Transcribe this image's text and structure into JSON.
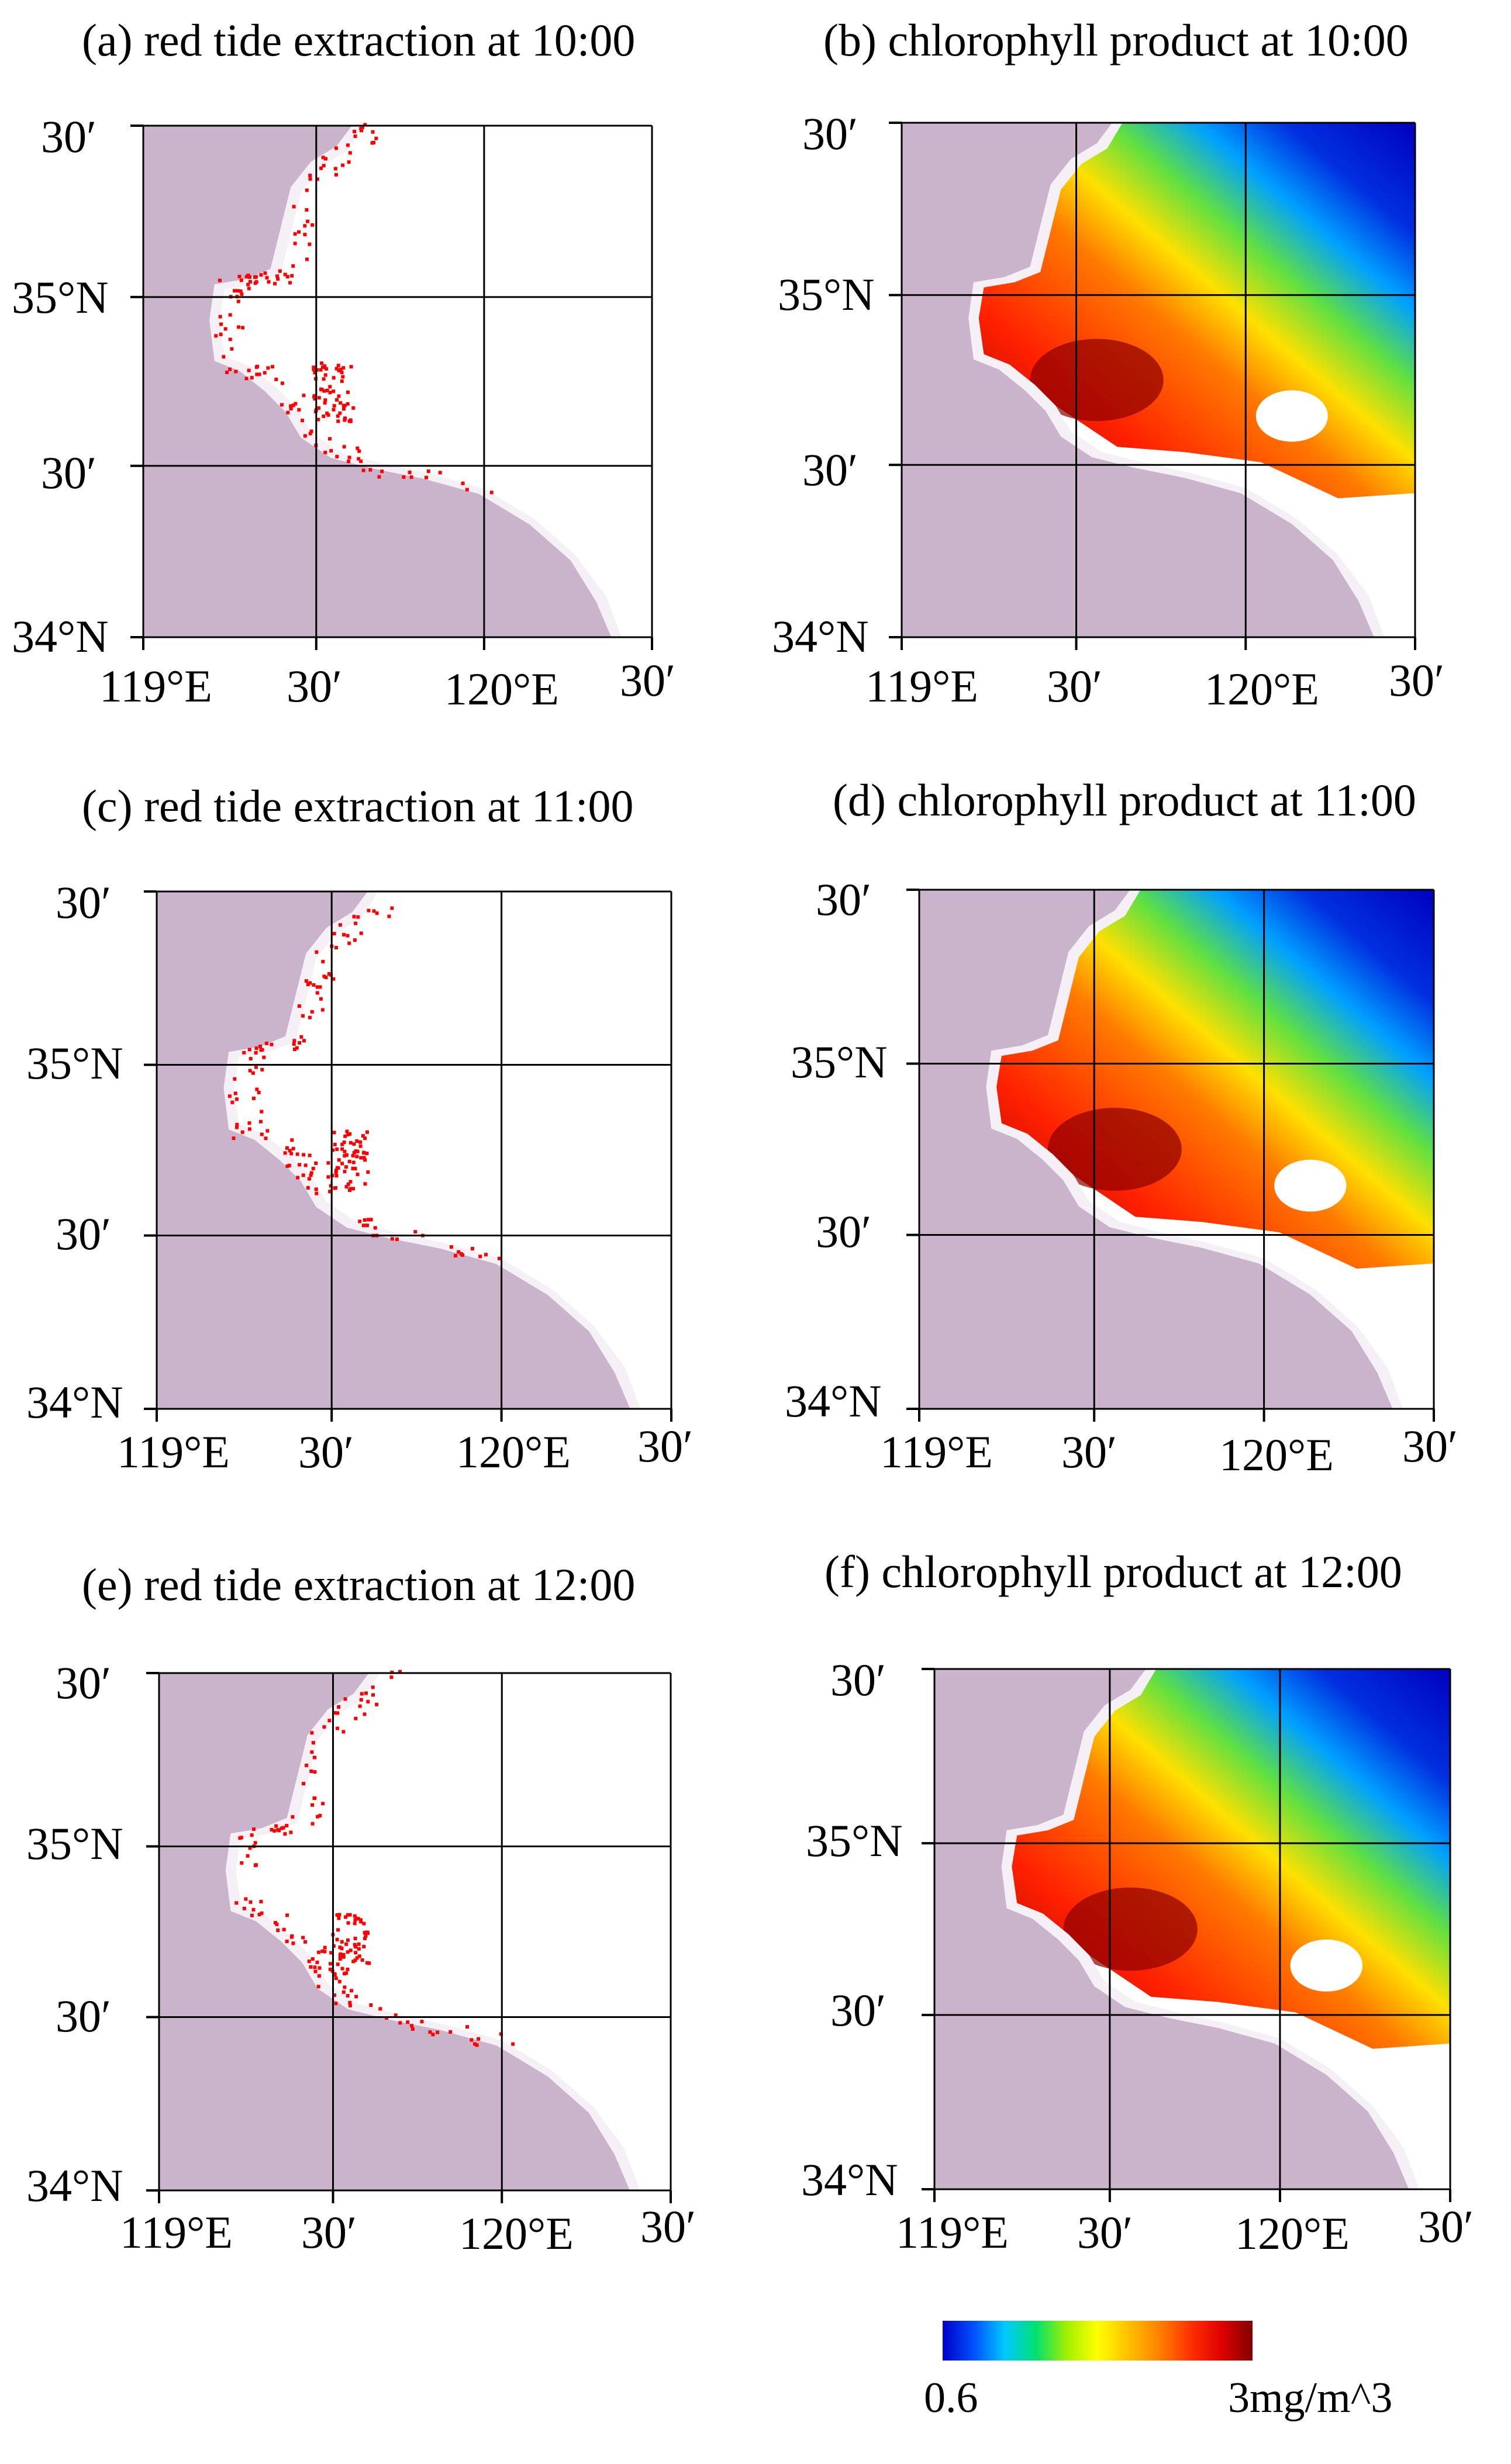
{
  "panels": [
    {
      "id": "a",
      "title": "(a) red tide extraction at 10:00",
      "kind": "red_tide",
      "time": "10:00"
    },
    {
      "id": "b",
      "title": "(b) chlorophyll product at 10:00",
      "kind": "chlorophyll",
      "time": "10:00"
    },
    {
      "id": "c",
      "title": "(c) red tide extraction at 11:00",
      "kind": "red_tide",
      "time": "11:00"
    },
    {
      "id": "d",
      "title": "(d) chlorophyll product at 11:00",
      "kind": "chlorophyll",
      "time": "11:00"
    },
    {
      "id": "e",
      "title": "(e) red tide extraction at 12:00",
      "kind": "red_tide",
      "time": "12:00"
    },
    {
      "id": "f",
      "title": "(f) chlorophyll product at 12:00",
      "kind": "chlorophyll",
      "time": "12:00"
    }
  ],
  "axes": {
    "lat_labels": [
      "30′",
      "35°N",
      "30′",
      "34°N"
    ],
    "lon_labels": [
      "119°E",
      "30′",
      "120°E",
      "30′"
    ]
  },
  "colorbar": {
    "min_label": "0.6",
    "max_label": "3mg/m^3",
    "min_value": 0.6,
    "max_value": 3,
    "unit": "mg/m^3",
    "colors": [
      "#0000c8",
      "#0050ff",
      "#00c8ff",
      "#00e070",
      "#a0f000",
      "#ffff00",
      "#ffc000",
      "#ff8000",
      "#ff3000",
      "#e00000",
      "#800000"
    ]
  },
  "colors": {
    "land": "#c9b4cc",
    "red_tide": "#ff0000",
    "grid": "#000000"
  }
}
